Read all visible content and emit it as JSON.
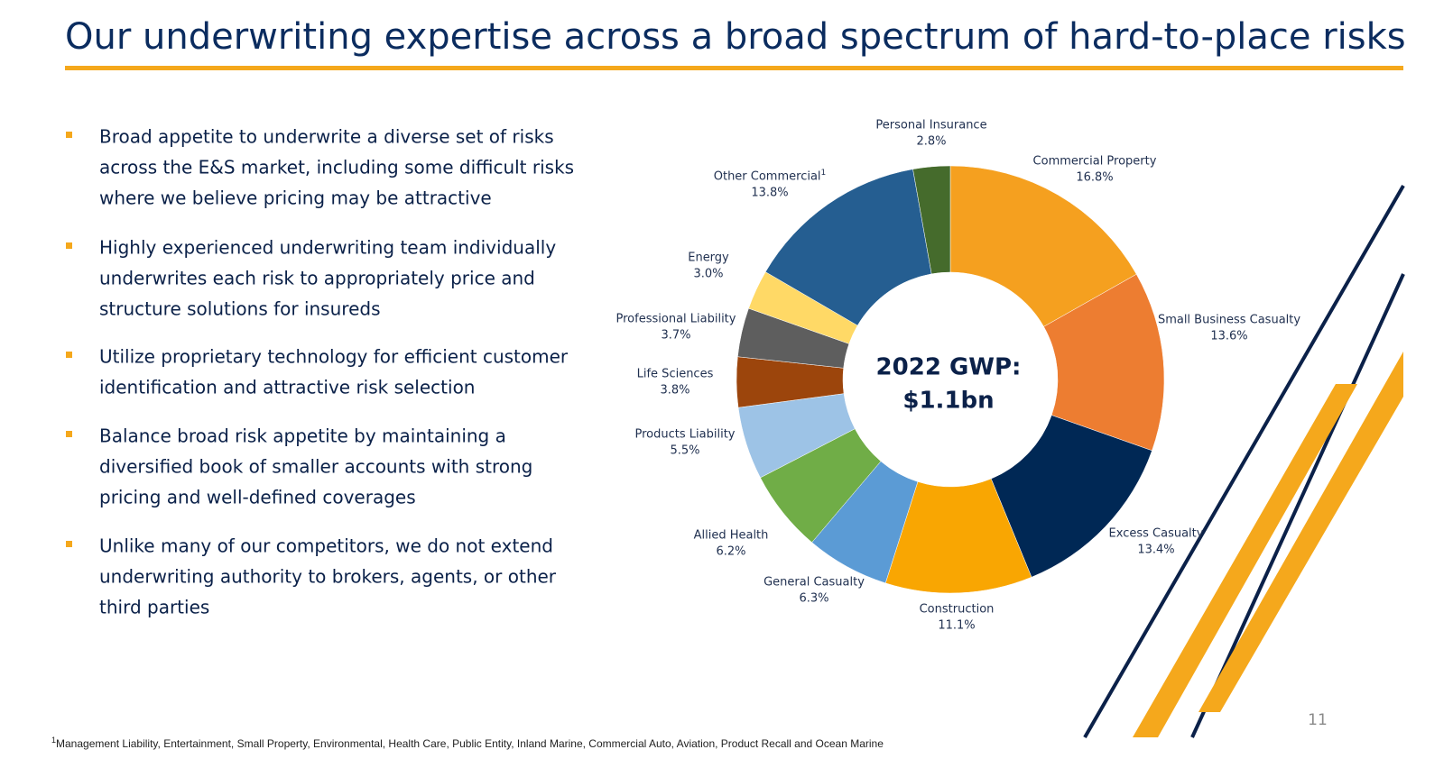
{
  "title": "Our underwriting expertise across a broad spectrum of hard-to-place risks",
  "bullets": [
    [
      "Broad appetite to underwrite a diverse set of risks",
      "across the E&S market, including some difficult risks",
      "where we believe pricing may be attractive"
    ],
    [
      "Highly experienced underwriting team individually",
      "underwrites each risk to appropriately price and",
      "structure solutions for insureds"
    ],
    [
      "Utilize proprietary technology for efficient customer",
      "identification and attractive risk selection"
    ],
    [
      "Balance broad risk appetite by maintaining a",
      "diversified book of smaller accounts with strong",
      "pricing and well-defined coverages"
    ],
    [
      "Unlike many of our competitors, we do not extend",
      "underwriting authority to brokers, agents, or other",
      "third parties"
    ]
  ],
  "chart_data": {
    "type": "pie",
    "donut": true,
    "center_label": [
      "2022 GWP:",
      "$1.1bn"
    ],
    "categories": [
      "Commercial Property",
      "Small Business Casualty",
      "Excess Casualty",
      "Construction",
      "General Casualty",
      "Allied Health",
      "Products Liability",
      "Life Sciences",
      "Professional Liability",
      "Energy",
      "Other Commercial",
      "Personal Insurance"
    ],
    "values": [
      16.8,
      13.6,
      13.4,
      11.1,
      6.3,
      6.2,
      5.5,
      3.8,
      3.7,
      3.0,
      13.8,
      2.8
    ],
    "value_labels": [
      "16.8%",
      "13.6%",
      "13.4%",
      "11.1%",
      "6.3%",
      "6.2%",
      "5.5%",
      "3.8%",
      "3.7%",
      "3.0%",
      "13.8%",
      "2.8%"
    ],
    "colors": [
      "#f5a01f",
      "#ed7d31",
      "#002855",
      "#f9a602",
      "#5b9bd5",
      "#70ad47",
      "#9dc3e6",
      "#9c450c",
      "#5e5e5e",
      "#ffd966",
      "#255e91",
      "#456b2c"
    ],
    "footnote_marker": "1"
  },
  "footnote": "Management Liability, Entertainment, Small Property, Environmental, Health Care, Public Entity, Inland Marine, Commercial Auto, Aviation, Product Recall and Ocean Marine",
  "page_number": "11"
}
